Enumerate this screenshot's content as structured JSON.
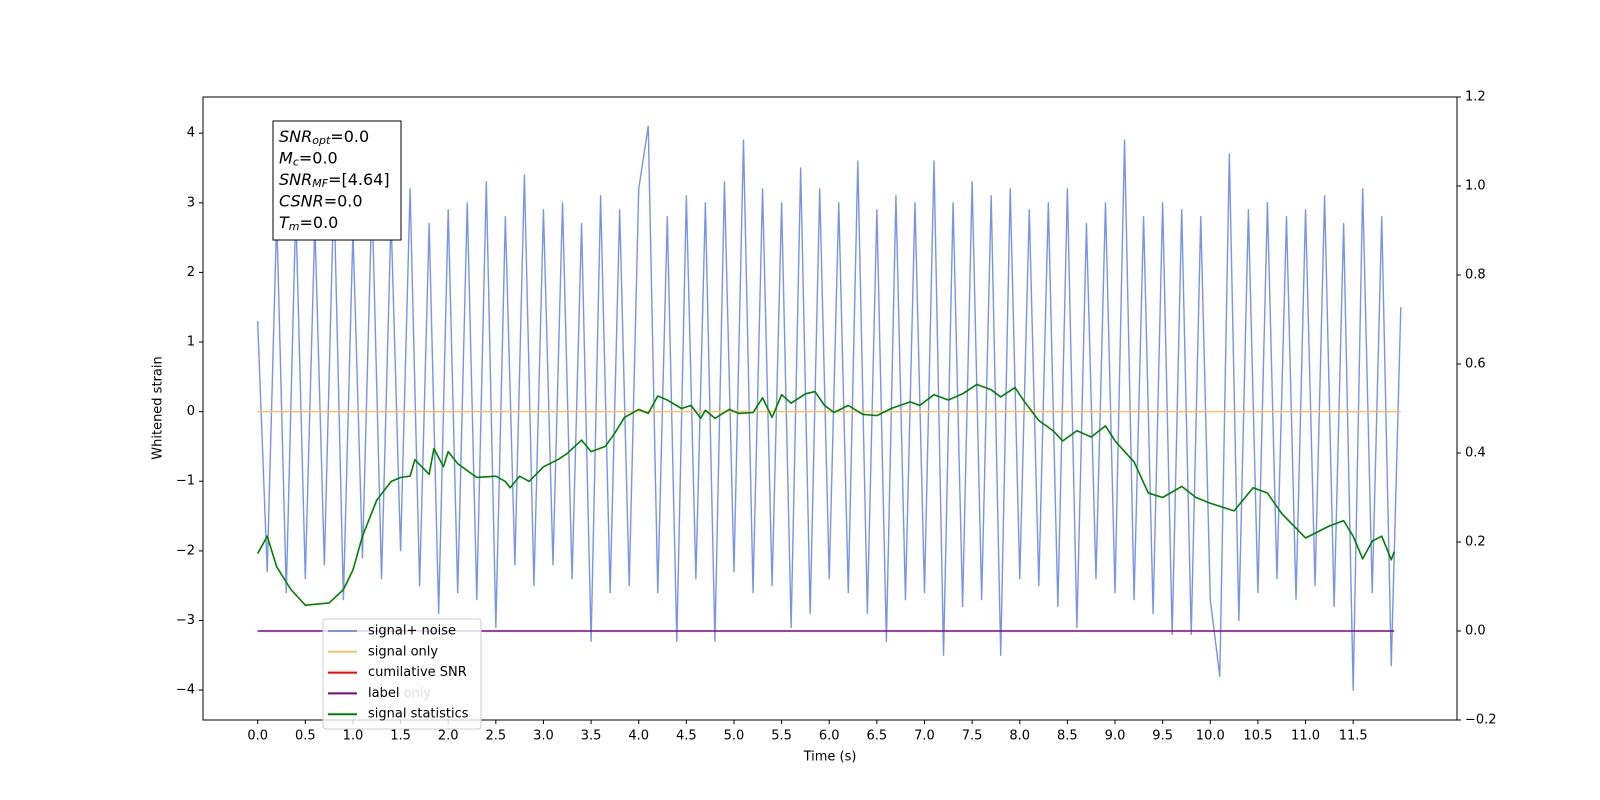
{
  "chart_data": {
    "type": "line",
    "xlabel": "Time (s)",
    "ylabel": "Whitened strain",
    "xlim": [
      -0.574,
      12.59
    ],
    "ylim": [
      -4.43,
      4.52
    ],
    "y2lim": [
      -0.2,
      1.2
    ],
    "xticks": [
      {
        "value": 0,
        "label": "0.0"
      },
      {
        "value": 0.5,
        "label": "0.5"
      },
      {
        "value": 1,
        "label": "1.0"
      },
      {
        "value": 1.5,
        "label": "1.5"
      },
      {
        "value": 2,
        "label": "2.0"
      },
      {
        "value": 2.5,
        "label": "2.5"
      },
      {
        "value": 3,
        "label": "3.0"
      },
      {
        "value": 3.5,
        "label": "3.5"
      },
      {
        "value": 4,
        "label": "4.0"
      },
      {
        "value": 4.5,
        "label": "4.5"
      },
      {
        "value": 5,
        "label": "5.0"
      },
      {
        "value": 5.5,
        "label": "5.5"
      },
      {
        "value": 6,
        "label": "6.0"
      },
      {
        "value": 6.5,
        "label": "6.5"
      },
      {
        "value": 7,
        "label": "7.0"
      },
      {
        "value": 7.5,
        "label": "7.5"
      },
      {
        "value": 8,
        "label": "8.0"
      },
      {
        "value": 8.5,
        "label": "8.5"
      },
      {
        "value": 9,
        "label": "9.0"
      },
      {
        "value": 9.5,
        "label": "9.5"
      },
      {
        "value": 10,
        "label": "10.0"
      },
      {
        "value": 10.5,
        "label": "10.5"
      },
      {
        "value": 11,
        "label": "11.0"
      },
      {
        "value": 11.5,
        "label": "11.5"
      }
    ],
    "yticks": [
      {
        "value": -4,
        "label": "−4"
      },
      {
        "value": -3,
        "label": "−3"
      },
      {
        "value": -2,
        "label": "−2"
      },
      {
        "value": -1,
        "label": "−1"
      },
      0,
      1,
      2,
      3,
      4
    ],
    "y2ticks": [
      {
        "value": -0.2,
        "label": "−0.2"
      },
      {
        "value": 0,
        "label": "0.0"
      },
      {
        "value": 0.2,
        "label": "0.2"
      },
      {
        "value": 0.4,
        "label": "0.4"
      },
      {
        "value": 0.6,
        "label": "0.6"
      },
      {
        "value": 0.8,
        "label": "0.8"
      },
      {
        "value": 1.0,
        "label": "1.0"
      },
      {
        "value": 1.2,
        "label": "1.2"
      }
    ],
    "legend": "lower left",
    "series": [
      {
        "name": "signal+ noise",
        "color": "#7994e6",
        "x": [
          0,
          0.1,
          0.2,
          0.3,
          0.4,
          0.5,
          0.6,
          0.7,
          0.8,
          0.9,
          1,
          1.1,
          1.2,
          1.3,
          1.4,
          1.5,
          1.6,
          1.7,
          1.8,
          1.9,
          2,
          2.1,
          2.2,
          2.3,
          2.4,
          2.5,
          2.6,
          2.7,
          2.8,
          2.9,
          3,
          3.1,
          3.2,
          3.3,
          3.4,
          3.5,
          3.6,
          3.7,
          3.8,
          3.9,
          4,
          4.1,
          4.2,
          4.3,
          4.4,
          4.5,
          4.6,
          4.7,
          4.8,
          4.9,
          5,
          5.1,
          5.2,
          5.3,
          5.4,
          5.5,
          5.6,
          5.7,
          5.8,
          5.9,
          6,
          6.1,
          6.2,
          6.3,
          6.4,
          6.5,
          6.6,
          6.7,
          6.8,
          6.9,
          7,
          7.1,
          7.2,
          7.3,
          7.4,
          7.5,
          7.6,
          7.7,
          7.8,
          7.9,
          8,
          8.1,
          8.2,
          8.3,
          8.4,
          8.5,
          8.6,
          8.7,
          8.8,
          8.9,
          9,
          9.1,
          9.2,
          9.3,
          9.4,
          9.5,
          9.6,
          9.7,
          9.8,
          9.9,
          10,
          10.1,
          10.2,
          10.3,
          10.4,
          10.5,
          10.6,
          10.7,
          10.8,
          10.9,
          11,
          11.1,
          11.2,
          11.3,
          11.4,
          11.5,
          11.6,
          11.7,
          11.8,
          11.9,
          12
        ],
        "values": [
          1.3,
          -2.3,
          2.8,
          -2.6,
          2.9,
          -2.4,
          2.7,
          -2.2,
          3.2,
          -2.7,
          2.6,
          -2.1,
          3.1,
          -2.4,
          2.8,
          -2.0,
          3.2,
          -2.5,
          2.7,
          -2.9,
          2.9,
          -2.6,
          3.0,
          -2.7,
          3.3,
          -3.1,
          2.8,
          -2.2,
          3.4,
          -2.5,
          2.9,
          -2.2,
          3.0,
          -2.4,
          2.7,
          -3.3,
          3.1,
          -2.6,
          2.9,
          -2.5,
          3.2,
          4.1,
          -2.6,
          2.8,
          -3.3,
          3.1,
          -2.4,
          3.0,
          -3.3,
          3.3,
          -2.3,
          3.9,
          -2.6,
          3.2,
          -2.5,
          3.0,
          -3.1,
          3.5,
          -2.9,
          3.2,
          -2.4,
          3.0,
          -2.6,
          3.6,
          -2.9,
          2.9,
          -3.3,
          3.1,
          -2.7,
          3.0,
          -2.6,
          3.6,
          -3.5,
          3.0,
          -2.8,
          3.3,
          -2.7,
          3.1,
          -3.5,
          3.2,
          -2.4,
          2.9,
          -2.5,
          3.0,
          -2.8,
          3.2,
          -3.1,
          2.7,
          -2.4,
          3.0,
          -2.6,
          3.9,
          -2.7,
          2.8,
          -2.9,
          3.0,
          -3.2,
          2.9,
          -3.2,
          2.8,
          -2.7,
          -3.8,
          3.7,
          -3.0,
          2.9,
          -2.6,
          3.0,
          -2.4,
          2.8,
          -2.7,
          2.9,
          -2.5,
          3.1,
          -2.8,
          2.7,
          -4.0,
          3.2,
          -2.6,
          2.8,
          -3.65,
          1.5
        ]
      },
      {
        "name": "signal only",
        "color": "#ffbf66",
        "x": [
          0,
          12
        ],
        "values": [
          0,
          0
        ]
      },
      {
        "name": "cumilative SNR",
        "color": "#ff0000"
      },
      {
        "name": "label",
        "color": "#800080",
        "axis": "y2",
        "x": [
          0,
          11.93
        ],
        "values": [
          0,
          0
        ]
      },
      {
        "name": "signal statistics",
        "color": "#008000",
        "axis": "y2",
        "x": [
          0,
          0.1,
          0.2,
          0.35,
          0.5,
          0.6,
          0.75,
          0.9,
          1,
          1.1,
          1.25,
          1.4,
          1.5,
          1.6,
          1.65,
          1.8,
          1.85,
          1.95,
          2,
          2.1,
          2.3,
          2.5,
          2.6,
          2.65,
          2.75,
          2.85,
          3,
          3.15,
          3.25,
          3.4,
          3.5,
          3.65,
          3.75,
          3.85,
          4,
          4.1,
          4.2,
          4.3,
          4.45,
          4.55,
          4.65,
          4.7,
          4.8,
          4.95,
          5.05,
          5.2,
          5.3,
          5.4,
          5.5,
          5.6,
          5.75,
          5.85,
          5.95,
          6.05,
          6.2,
          6.35,
          6.5,
          6.65,
          6.85,
          6.95,
          7.1,
          7.25,
          7.4,
          7.55,
          7.7,
          7.8,
          7.95,
          8.05,
          8.2,
          8.35,
          8.45,
          8.6,
          8.75,
          8.9,
          9,
          9.2,
          9.35,
          9.5,
          9.7,
          9.85,
          10,
          10.25,
          10.45,
          10.6,
          10.75,
          11,
          11.25,
          11.4,
          11.5,
          11.6,
          11.7,
          11.8,
          11.9,
          11.93
        ],
        "values": [
          0.174,
          0.213,
          0.144,
          0.093,
          0.058,
          0.06,
          0.063,
          0.093,
          0.137,
          0.213,
          0.294,
          0.336,
          0.345,
          0.348,
          0.385,
          0.352,
          0.41,
          0.369,
          0.403,
          0.376,
          0.345,
          0.348,
          0.336,
          0.322,
          0.348,
          0.336,
          0.369,
          0.385,
          0.399,
          0.429,
          0.403,
          0.415,
          0.445,
          0.48,
          0.498,
          0.489,
          0.528,
          0.519,
          0.5,
          0.507,
          0.478,
          0.496,
          0.478,
          0.498,
          0.489,
          0.491,
          0.524,
          0.48,
          0.531,
          0.512,
          0.533,
          0.538,
          0.507,
          0.491,
          0.507,
          0.487,
          0.484,
          0.5,
          0.515,
          0.507,
          0.531,
          0.519,
          0.533,
          0.554,
          0.542,
          0.526,
          0.547,
          0.515,
          0.473,
          0.45,
          0.427,
          0.45,
          0.436,
          0.461,
          0.427,
          0.38,
          0.31,
          0.3,
          0.325,
          0.3,
          0.287,
          0.27,
          0.322,
          0.31,
          0.264,
          0.209,
          0.236,
          0.248,
          0.213,
          0.162,
          0.202,
          0.213,
          0.16,
          0.178
        ]
      }
    ],
    "legend_ghost": "label only",
    "annotations": [
      {
        "text": "SNR",
        "sub": "opt",
        "rest": "=0.0"
      },
      {
        "text": "M",
        "sub": "c",
        "rest": "=0.0"
      },
      {
        "text": "SNR",
        "sub": "MF",
        "rest": "=[4.64]"
      },
      {
        "text": "CSNR",
        "rest": "=0.0"
      },
      {
        "text": "T",
        "sub": "m",
        "rest": "=0.0"
      }
    ]
  }
}
